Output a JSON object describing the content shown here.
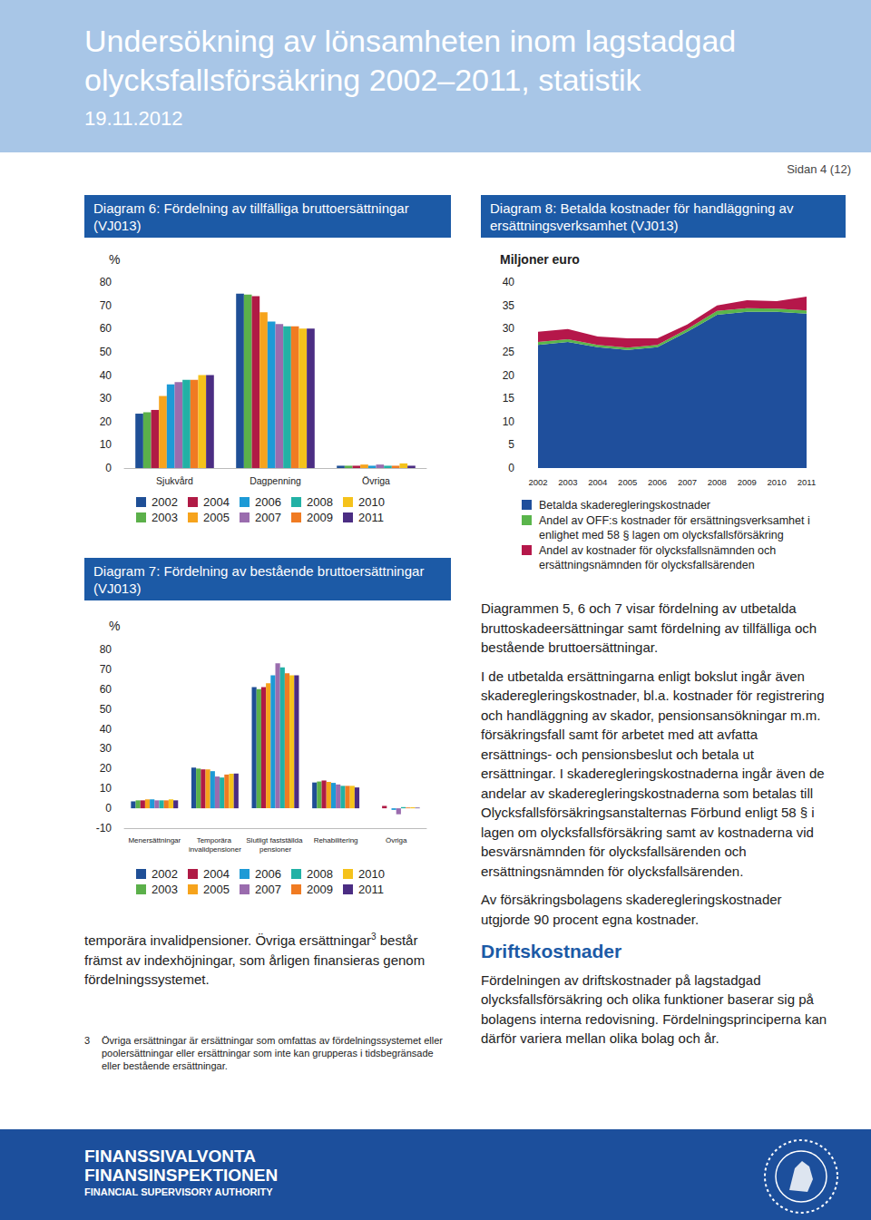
{
  "header": {
    "title": "Undersökning av lönsamheten inom lagstadgad olycksfallsförsäkring 2002–2011, statistik",
    "date": "19.11.2012",
    "page": "Sidan 4 (12)"
  },
  "chart_data": [
    {
      "type": "bar",
      "title": "Diagram 6: Fördelning av tillfälliga bruttoersättningar (VJ013)",
      "y_label": "%",
      "categories": [
        "Sjukvård",
        "Dagpenning",
        "Övriga"
      ],
      "series": [
        {
          "name": "2002",
          "color": "#1f4f96",
          "values": [
            23.4,
            75,
            1
          ]
        },
        {
          "name": "2003",
          "color": "#5bb04a",
          "values": [
            24,
            74.6,
            1
          ]
        },
        {
          "name": "2004",
          "color": "#b01a45",
          "values": [
            25,
            74,
            1
          ]
        },
        {
          "name": "2005",
          "color": "#f6a31c",
          "values": [
            31,
            67,
            1.5
          ]
        },
        {
          "name": "2006",
          "color": "#1d9ad6",
          "values": [
            36,
            63,
            1
          ]
        },
        {
          "name": "2007",
          "color": "#9a6cae",
          "values": [
            37,
            62,
            1.5
          ]
        },
        {
          "name": "2008",
          "color": "#22b1a5",
          "values": [
            38,
            61,
            1
          ]
        },
        {
          "name": "2009",
          "color": "#f07b22",
          "values": [
            38,
            61,
            1
          ]
        },
        {
          "name": "2010",
          "color": "#f5c21b",
          "values": [
            40,
            60,
            2
          ]
        },
        {
          "name": "2011",
          "color": "#4b2d83",
          "values": [
            40,
            60,
            1
          ]
        }
      ],
      "ylim": [
        0,
        80
      ],
      "yticks": [
        0,
        10,
        20,
        30,
        40,
        50,
        60,
        70,
        80
      ],
      "grid": false,
      "legend": "bottom"
    },
    {
      "type": "area",
      "title": "Diagram 8: Betalda kostnader för handläggning av ersättningsverksamhet (VJ013)",
      "y_label": "Miljoner euro",
      "categories": [
        "2002",
        "2003",
        "2004",
        "2005",
        "2006",
        "2007",
        "2008",
        "2009",
        "2010",
        "2011"
      ],
      "series": [
        {
          "name": "Betalda skaderegleringskostnader",
          "color": "#1f4f9c",
          "values": [
            26.5,
            27.1,
            26,
            25.4,
            26,
            29.3,
            33,
            33.6,
            33.6,
            33.2
          ]
        },
        {
          "name": "Andel av OFF:s kostnader för ersättningsverksamhet i enlighet med 58 § lagen om olycksfallsförsäkring",
          "color": "#5ab54b",
          "values": [
            0.6,
            0.6,
            0.5,
            0.5,
            0.5,
            0.6,
            0.8,
            0.8,
            0.7,
            0.7
          ]
        },
        {
          "name": "Andel av kostnader för olycksfallsnämnden och ersättningsnämnden för olycksfallsärenden",
          "color": "#b5174a",
          "values": [
            2.2,
            2.2,
            1.8,
            2.0,
            1.4,
            1.0,
            1.2,
            1.7,
            1.6,
            3.0
          ]
        }
      ],
      "stacked": true,
      "ylim": [
        0,
        40
      ],
      "yticks": [
        0,
        5,
        10,
        15,
        20,
        25,
        30,
        35,
        40
      ],
      "grid": false,
      "legend": "bottom"
    },
    {
      "type": "bar",
      "title": "Diagram 7: Fördelning av bestående bruttoersättningar (VJ013)",
      "y_label": "%",
      "categories": [
        "Menersättningar",
        "Temporära invalidpensioner",
        "Slutligt fastställda pensioner",
        "Rehabilitering",
        "Övriga"
      ],
      "series": [
        {
          "name": "2002",
          "color": "#1f4f96",
          "values": [
            3.5,
            20.5,
            61,
            13,
            0
          ]
        },
        {
          "name": "2003",
          "color": "#5bb04a",
          "values": [
            4,
            20,
            60,
            13.5,
            0
          ]
        },
        {
          "name": "2004",
          "color": "#b01a45",
          "values": [
            4,
            19.6,
            61,
            14,
            1.2
          ]
        },
        {
          "name": "2005",
          "color": "#f6a31c",
          "values": [
            4.5,
            19.6,
            63,
            13.3,
            0
          ]
        },
        {
          "name": "2006",
          "color": "#1d9ad6",
          "values": [
            4.5,
            18.7,
            67,
            12.8,
            -0.8
          ]
        },
        {
          "name": "2007",
          "color": "#9a6cae",
          "values": [
            4,
            16,
            73,
            12,
            -3
          ]
        },
        {
          "name": "2008",
          "color": "#22b1a5",
          "values": [
            4,
            15.5,
            71,
            11.3,
            0.6
          ]
        },
        {
          "name": "2009",
          "color": "#f07b22",
          "values": [
            4,
            17,
            68,
            11.3,
            0.4
          ]
        },
        {
          "name": "2010",
          "color": "#f5c21b",
          "values": [
            4.5,
            17.4,
            67,
            11.3,
            0.5
          ]
        },
        {
          "name": "2011",
          "color": "#4b2d83",
          "values": [
            4,
            17.5,
            67,
            10.5,
            0.3
          ]
        }
      ],
      "ylim": [
        -10,
        80
      ],
      "yticks": [
        -10,
        0,
        10,
        20,
        30,
        40,
        50,
        60,
        70,
        80
      ],
      "grid": false,
      "legend": "bottom"
    }
  ],
  "left_text": {
    "before": "temporära invalidpensioner. Övriga ersättningar",
    "footnote_ref": "3",
    "after": " består främst av indexhöjningar, som årligen finansieras genom fördelningssystemet."
  },
  "footnote": {
    "number": "3",
    "text": "Övriga ersättningar är ersättningar som omfattas av fördelningssystemet eller poolersättningar eller ersättningar som inte kan grupperas i tidsbegränsade eller bestående ersättningar."
  },
  "right_text": {
    "paragraphs": [
      "Diagrammen 5, 6 och 7 visar fördelning av utbetalda bruttoskadeersättningar samt fördelning av tillfälliga och bestående bruttoersättningar.",
      "I de utbetalda ersättningarna enligt bokslut ingår även skaderegleringskostnader, bl.a. kostnader för registrering och handläggning av skador, pensionsansökningar m.m. försäkringsfall samt för arbetet med att avfatta ersättnings- och pensionsbeslut och betala ut ersättningar. I skaderegleringskostnaderna ingår även de andelar av skaderegleringskostnaderna som betalas till Olycksfallsförsäkringsanstalternas Förbund enligt 58 § i lagen om olycksfallsförsäkring samt av kostnaderna vid besvärsnämnden för olycksfallsärenden och ersättningsnämnden för olycksfallsärenden.",
      "Av försäkringsbolagens skaderegleringskostnader utgjorde 90 procent egna kostnader."
    ],
    "heading": "Driftskostnader",
    "after_heading": [
      "Fördelningen av driftskostnader på lagstadgad olycksfallsförsäkring och olika funktioner baserar sig på bolagens interna redovisning. Fördelningsprinciperna kan därför variera mellan olika bolag och år."
    ]
  },
  "footer": {
    "lines": [
      "FINANSSIVALVONTA",
      "FINANSINSPEKTIONEN",
      "FINANCIAL SUPERVISORY AUTHORITY"
    ]
  }
}
